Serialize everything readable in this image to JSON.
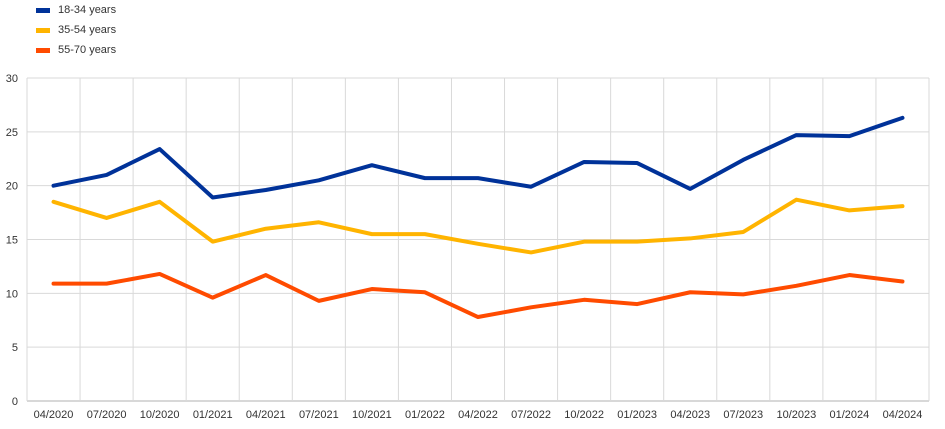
{
  "chart_data": {
    "type": "line",
    "title": "",
    "xlabel": "",
    "ylabel": "",
    "ylim": [
      0,
      30
    ],
    "yticks": [
      0,
      5,
      10,
      15,
      20,
      25,
      30
    ],
    "grid": true,
    "legend_position": "top-left",
    "categories": [
      "04/2020",
      "07/2020",
      "10/2020",
      "01/2021",
      "04/2021",
      "07/2021",
      "10/2021",
      "01/2022",
      "04/2022",
      "07/2022",
      "10/2022",
      "01/2023",
      "04/2023",
      "07/2023",
      "10/2023",
      "01/2024",
      "04/2024"
    ],
    "series": [
      {
        "name": "18-34 years",
        "color": "#003299",
        "values": [
          20.0,
          21.0,
          23.4,
          18.9,
          19.6,
          20.5,
          21.9,
          20.7,
          20.7,
          19.9,
          22.2,
          22.1,
          19.7,
          22.4,
          24.7,
          24.6,
          26.3
        ]
      },
      {
        "name": "35-54 years",
        "color": "#FFB400",
        "values": [
          18.5,
          17.0,
          18.5,
          14.8,
          16.0,
          16.6,
          15.5,
          15.5,
          14.6,
          13.8,
          14.8,
          14.8,
          15.1,
          15.7,
          18.7,
          17.7,
          18.1
        ]
      },
      {
        "name": "55-70 years",
        "color": "#FF4B00",
        "values": [
          10.9,
          10.9,
          11.8,
          9.6,
          11.7,
          9.3,
          10.4,
          10.1,
          7.8,
          8.7,
          9.4,
          9.0,
          10.1,
          9.9,
          10.7,
          11.7,
          11.1
        ]
      }
    ]
  }
}
